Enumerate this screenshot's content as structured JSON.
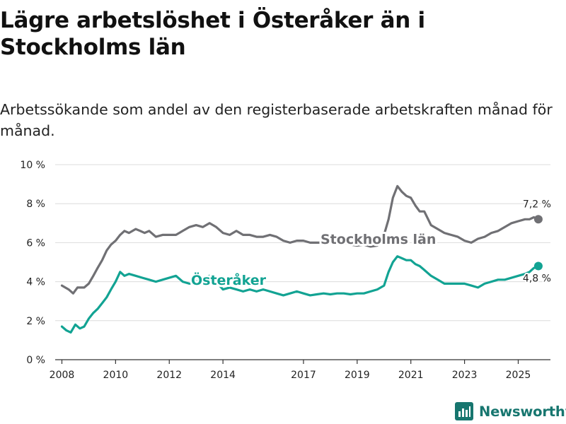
{
  "title": "Lägre arbetslöshet i Österåker än i Stockholms län",
  "subtitle": "Arbetssökande som andel av den registerbaserade arbetskraften månad för månad.",
  "brand": {
    "name": "Newsworthy",
    "icon": "bar-chart-icon"
  },
  "colors": {
    "stockholm": "#707074",
    "osteraker": "#12a393",
    "grid": "#dcdcdc",
    "axis": "#333333",
    "text": "#222222"
  },
  "chart_data": {
    "type": "line",
    "title": "Lägre arbetslöshet i Österåker än i Stockholms län",
    "xlabel": "",
    "ylabel": "",
    "xlim": [
      2007.75,
      2026.2
    ],
    "ylim": [
      0,
      10
    ],
    "y_ticks": [
      0,
      2,
      4,
      6,
      8,
      10
    ],
    "y_tick_labels": [
      "0 %",
      "2 %",
      "4 %",
      "6 %",
      "8 %",
      "10 %"
    ],
    "x_ticks": [
      2008,
      2010,
      2012,
      2014,
      2017,
      2019,
      2021,
      2023,
      2025
    ],
    "x_tick_labels": [
      "2008",
      "2010",
      "2012",
      "2014",
      "2017",
      "2019",
      "2021",
      "2023",
      "2025"
    ],
    "grid": true,
    "series": [
      {
        "name": "Stockholms län",
        "label": "Stockholms län",
        "color": "#707074",
        "end_label": "7,2 %",
        "x": [
          2008.0,
          2008.25,
          2008.42,
          2008.58,
          2008.83,
          2009.0,
          2009.17,
          2009.33,
          2009.5,
          2009.67,
          2009.83,
          2010.0,
          2010.17,
          2010.33,
          2010.5,
          2010.75,
          2010.92,
          2011.08,
          2011.25,
          2011.5,
          2011.75,
          2012.0,
          2012.25,
          2012.5,
          2012.75,
          2013.0,
          2013.25,
          2013.5,
          2013.75,
          2014.0,
          2014.25,
          2014.5,
          2014.75,
          2015.0,
          2015.25,
          2015.5,
          2015.75,
          2016.0,
          2016.25,
          2016.5,
          2016.75,
          2017.0,
          2017.25,
          2017.5,
          2017.75,
          2018.0,
          2018.25,
          2018.5,
          2018.75,
          2019.0,
          2019.25,
          2019.5,
          2019.75,
          2020.0,
          2020.17,
          2020.33,
          2020.5,
          2020.67,
          2020.83,
          2021.0,
          2021.17,
          2021.33,
          2021.5,
          2021.75,
          2022.0,
          2022.25,
          2022.5,
          2022.75,
          2023.0,
          2023.25,
          2023.5,
          2023.75,
          2024.0,
          2024.25,
          2024.5,
          2024.75,
          2025.0,
          2025.25,
          2025.42,
          2025.58,
          2025.75
        ],
        "values": [
          3.8,
          3.6,
          3.4,
          3.7,
          3.7,
          3.9,
          4.3,
          4.7,
          5.1,
          5.6,
          5.9,
          6.1,
          6.4,
          6.6,
          6.5,
          6.7,
          6.6,
          6.5,
          6.6,
          6.3,
          6.4,
          6.4,
          6.4,
          6.6,
          6.8,
          6.9,
          6.8,
          7.0,
          6.8,
          6.5,
          6.4,
          6.6,
          6.4,
          6.4,
          6.3,
          6.3,
          6.4,
          6.3,
          6.1,
          6.0,
          6.1,
          6.1,
          6.0,
          6.0,
          6.0,
          6.0,
          6.0,
          6.0,
          5.9,
          5.85,
          5.9,
          5.8,
          5.85,
          6.4,
          7.2,
          8.3,
          8.9,
          8.6,
          8.4,
          8.3,
          7.9,
          7.6,
          7.6,
          6.9,
          6.7,
          6.5,
          6.4,
          6.3,
          6.1,
          6.0,
          6.2,
          6.3,
          6.5,
          6.6,
          6.8,
          7.0,
          7.1,
          7.2,
          7.2,
          7.3,
          7.2
        ]
      },
      {
        "name": "Österåker",
        "label": "Österåker",
        "color": "#12a393",
        "end_label": "4,8 %",
        "x": [
          2008.0,
          2008.17,
          2008.33,
          2008.5,
          2008.67,
          2008.83,
          2009.0,
          2009.17,
          2009.33,
          2009.5,
          2009.67,
          2009.83,
          2010.0,
          2010.17,
          2010.33,
          2010.5,
          2010.75,
          2011.0,
          2011.25,
          2011.5,
          2011.75,
          2012.0,
          2012.25,
          2012.5,
          2012.75,
          2013.0,
          2013.25,
          2013.5,
          2013.75,
          2014.0,
          2014.25,
          2014.5,
          2014.75,
          2015.0,
          2015.25,
          2015.5,
          2015.75,
          2016.0,
          2016.25,
          2016.5,
          2016.75,
          2017.0,
          2017.25,
          2017.5,
          2017.75,
          2018.0,
          2018.25,
          2018.5,
          2018.75,
          2019.0,
          2019.25,
          2019.5,
          2019.75,
          2020.0,
          2020.17,
          2020.33,
          2020.5,
          2020.67,
          2020.83,
          2021.0,
          2021.17,
          2021.33,
          2021.5,
          2021.75,
          2022.0,
          2022.25,
          2022.5,
          2022.75,
          2023.0,
          2023.25,
          2023.5,
          2023.75,
          2024.0,
          2024.25,
          2024.5,
          2024.75,
          2025.0,
          2025.25,
          2025.42,
          2025.58,
          2025.75
        ],
        "values": [
          1.7,
          1.5,
          1.4,
          1.8,
          1.6,
          1.7,
          2.1,
          2.4,
          2.6,
          2.9,
          3.2,
          3.6,
          4.0,
          4.5,
          4.3,
          4.4,
          4.3,
          4.2,
          4.1,
          4.0,
          4.1,
          4.2,
          4.3,
          4.0,
          3.9,
          4.0,
          4.2,
          4.3,
          4.0,
          3.6,
          3.7,
          3.6,
          3.5,
          3.6,
          3.5,
          3.6,
          3.5,
          3.4,
          3.3,
          3.4,
          3.5,
          3.4,
          3.3,
          3.35,
          3.4,
          3.35,
          3.4,
          3.4,
          3.35,
          3.4,
          3.4,
          3.5,
          3.6,
          3.8,
          4.5,
          5.0,
          5.3,
          5.2,
          5.1,
          5.1,
          4.9,
          4.8,
          4.6,
          4.3,
          4.1,
          3.9,
          3.9,
          3.9,
          3.9,
          3.8,
          3.7,
          3.9,
          4.0,
          4.1,
          4.1,
          4.2,
          4.3,
          4.4,
          4.5,
          4.7,
          4.8
        ]
      }
    ]
  }
}
